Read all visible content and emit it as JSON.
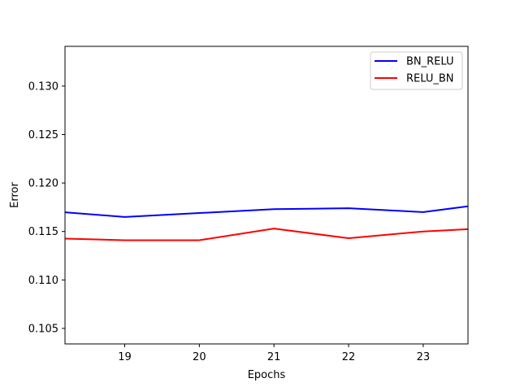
{
  "chart_data": {
    "type": "line",
    "title": "",
    "xlabel": "Epochs",
    "ylabel": "Error",
    "xlim": [
      18.2,
      23.6
    ],
    "ylim": [
      0.1034,
      0.1341
    ],
    "xticks": [
      19,
      20,
      21,
      22,
      23
    ],
    "xtick_labels": [
      "19",
      "20",
      "21",
      "22",
      "23"
    ],
    "yticks": [
      0.105,
      0.11,
      0.115,
      0.12,
      0.125,
      0.13
    ],
    "ytick_labels": [
      "0.105",
      "0.110",
      "0.115",
      "0.120",
      "0.125",
      "0.130"
    ],
    "grid": false,
    "legend_position": "top-right",
    "series": [
      {
        "name": "BN_RELU",
        "color": "#0000ff",
        "x": [
          18,
          19,
          20,
          21,
          22,
          23,
          24
        ],
        "y": [
          0.1171,
          0.1165,
          0.1169,
          0.1173,
          0.1174,
          0.117,
          0.118
        ]
      },
      {
        "name": "RELU_BN",
        "color": "#ff0000",
        "x": [
          18,
          19,
          20,
          21,
          22,
          23,
          24
        ],
        "y": [
          0.1143,
          0.1141,
          0.1141,
          0.1153,
          0.1143,
          0.115,
          0.1154
        ]
      }
    ]
  }
}
